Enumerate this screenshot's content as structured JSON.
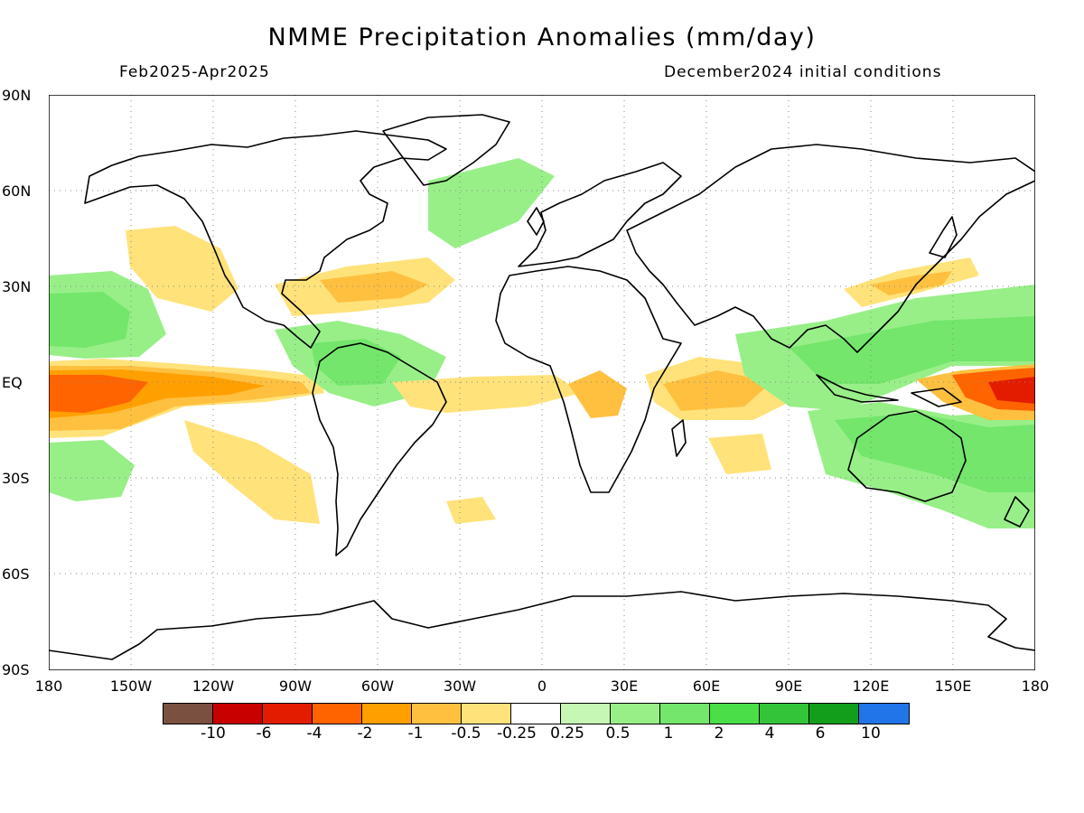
{
  "header": {
    "title": "NMME Precipitation Anomalies (mm/day)",
    "period": "Feb2025-Apr2025",
    "init": "December2024 initial conditions"
  },
  "axes": {
    "lat_labels": [
      "90N",
      "60N",
      "30N",
      "EQ",
      "30S",
      "60S",
      "90S"
    ],
    "lon_labels": [
      "180",
      "150W",
      "120W",
      "90W",
      "60W",
      "30W",
      "0",
      "30E",
      "60E",
      "90E",
      "120E",
      "150E",
      "180"
    ]
  },
  "colorbar": {
    "colors": [
      "#7a5040",
      "#c80000",
      "#e31c00",
      "#ff6400",
      "#ffa000",
      "#ffc040",
      "#ffe27a",
      "#ffffff",
      "#c6f7b4",
      "#98ef88",
      "#73e66b",
      "#4ade48",
      "#33c43a",
      "#129e1a",
      "#2175e8"
    ],
    "labels": [
      "-10",
      "-6",
      "-4",
      "-2",
      "-1",
      "-0.5",
      "-0.25",
      "0.25",
      "0.5",
      "1",
      "2",
      "4",
      "6",
      "10"
    ]
  },
  "map_style": {
    "coastline_color": "#000000",
    "grid_color": "#888888",
    "grid": true
  }
}
